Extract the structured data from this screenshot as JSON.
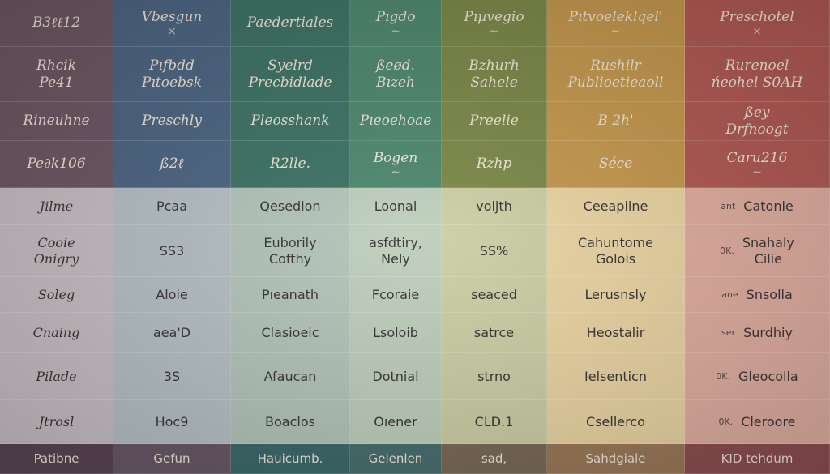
{
  "colors": {
    "columns": [
      {
        "dark": "#6e5865",
        "light": "#c9c1c6",
        "foot": "#5a4654"
      },
      {
        "dark": "#4e6784",
        "light": "#b7c2c7",
        "foot": "#6a5868"
      },
      {
        "dark": "#3f7467",
        "light": "#b5c6bb",
        "foot": "#3c6a6a"
      },
      {
        "dark": "#4f8a6f",
        "light": "#c0d0bd",
        "foot": "#496f6f"
      },
      {
        "dark": "#7d8a4a",
        "light": "#cdd0a6",
        "foot": "#7a6a55"
      },
      {
        "dark": "#c79a4f",
        "light": "#ecd6a4",
        "foot": "#9c7a58"
      },
      {
        "dark": "#b35a55",
        "light": "#e3b0a2",
        "foot": "#8f4f52"
      }
    ]
  },
  "rows": [
    {
      "kind": "dark",
      "cells": [
        {
          "lines": [
            "B3ℓℓ12"
          ]
        },
        {
          "lines": [
            "Vbesgun"
          ],
          "mark": "×"
        },
        {
          "lines": [
            "Paedertiales"
          ]
        },
        {
          "lines": [
            "Pıgdo"
          ],
          "mark": "~"
        },
        {
          "lines": [
            "Pıµvegio"
          ],
          "mark": "~"
        },
        {
          "lines": [
            "Pıtvoeleklqel'"
          ],
          "mark": "~"
        },
        {
          "lines": [
            "Preschotel"
          ],
          "mark": "×"
        }
      ]
    },
    {
      "kind": "dark",
      "cells": [
        {
          "lines": [
            "Rhcik",
            "Pe41"
          ]
        },
        {
          "lines": [
            "Pıfbdd",
            "Pıtoebsk"
          ]
        },
        {
          "lines": [
            "Syelrd",
            "Precbidlade"
          ]
        },
        {
          "lines": [
            "ßeød.",
            "Bızeh"
          ]
        },
        {
          "lines": [
            "Bzhurh",
            "Sahele"
          ]
        },
        {
          "lines": [
            "Rushilr",
            "Publioetieaoll"
          ]
        },
        {
          "lines": [
            "Rurenoel",
            "ńeohel S0AH"
          ]
        }
      ]
    },
    {
      "kind": "dark",
      "cells": [
        {
          "lines": [
            "Rineuhne"
          ]
        },
        {
          "lines": [
            "Preschly"
          ]
        },
        {
          "lines": [
            "Pleosshank"
          ]
        },
        {
          "lines": [
            "Pıeoehoae"
          ]
        },
        {
          "lines": [
            "Preelie"
          ]
        },
        {
          "lines": [
            "B 2h'"
          ]
        },
        {
          "lines": [
            "ßey",
            "Drfnoogt"
          ]
        }
      ]
    },
    {
      "kind": "dark",
      "cells": [
        {
          "lines": [
            "Pe∂k106"
          ]
        },
        {
          "lines": [
            "ß2ℓ"
          ]
        },
        {
          "lines": [
            "R2lle."
          ]
        },
        {
          "lines": [
            "Bogen"
          ],
          "mark": "~"
        },
        {
          "lines": [
            "Rzhp"
          ]
        },
        {
          "lines": [
            "Séce"
          ]
        },
        {
          "lines": [
            "Caru216"
          ],
          "mark": "~"
        }
      ]
    },
    {
      "kind": "light",
      "cells": [
        {
          "lines": [
            "Jilme"
          ]
        },
        {
          "lines": [
            "Pcaa"
          ]
        },
        {
          "lines": [
            "Qesedion"
          ]
        },
        {
          "lines": [
            "Loonal"
          ]
        },
        {
          "lines": [
            "voljth"
          ]
        },
        {
          "lines": [
            "Ceeapiine"
          ]
        },
        {
          "small": "ant",
          "lines": [
            "Catonie"
          ]
        }
      ]
    },
    {
      "kind": "light",
      "cells": [
        {
          "lines": [
            "Cooie",
            "Onigry"
          ]
        },
        {
          "lines": [
            "SS3"
          ]
        },
        {
          "lines": [
            "Euborily",
            "Cofthy"
          ]
        },
        {
          "lines": [
            "asfdtiry,",
            "Nely"
          ]
        },
        {
          "lines": [
            "SS%"
          ]
        },
        {
          "lines": [
            "Cahuntome",
            "Golois"
          ]
        },
        {
          "small": "0K.",
          "lines": [
            "Snahaly",
            "Cilie"
          ]
        }
      ]
    },
    {
      "kind": "light",
      "cells": [
        {
          "lines": [
            "Soleg"
          ]
        },
        {
          "lines": [
            "Aloie"
          ]
        },
        {
          "lines": [
            "Pıeanath"
          ]
        },
        {
          "lines": [
            "Fcoraie"
          ]
        },
        {
          "lines": [
            "seaced"
          ]
        },
        {
          "lines": [
            "Lerusnsly"
          ]
        },
        {
          "small": "ane",
          "lines": [
            "Snsolla"
          ]
        }
      ]
    },
    {
      "kind": "light",
      "cells": [
        {
          "lines": [
            "Cnaing"
          ]
        },
        {
          "lines": [
            "aea'D"
          ]
        },
        {
          "lines": [
            "Clasioeic"
          ]
        },
        {
          "lines": [
            "Lsoloib"
          ]
        },
        {
          "lines": [
            "satrce"
          ]
        },
        {
          "lines": [
            "Heostalir"
          ]
        },
        {
          "small": "ser",
          "lines": [
            "Surdhiy"
          ]
        }
      ]
    },
    {
      "kind": "light",
      "cells": [
        {
          "lines": [
            "Pilade"
          ]
        },
        {
          "lines": [
            "3S"
          ]
        },
        {
          "lines": [
            "Afaucan"
          ]
        },
        {
          "lines": [
            "Dotnial"
          ]
        },
        {
          "lines": [
            "strno"
          ]
        },
        {
          "lines": [
            "Ielsenticn"
          ]
        },
        {
          "small": "0K.",
          "lines": [
            "Gleocolla"
          ]
        }
      ]
    },
    {
      "kind": "light",
      "cells": [
        {
          "lines": [
            "Jtrosl"
          ]
        },
        {
          "lines": [
            "Hoc9"
          ]
        },
        {
          "lines": [
            "Boaclos"
          ]
        },
        {
          "lines": [
            "Oıener"
          ]
        },
        {
          "lines": [
            "CLD.1"
          ]
        },
        {
          "lines": [
            "Csellerco"
          ]
        },
        {
          "small": "0K.",
          "lines": [
            "Cleroore"
          ]
        }
      ]
    },
    {
      "kind": "foot",
      "cells": [
        {
          "lines": [
            "Patibne"
          ]
        },
        {
          "lines": [
            "Gefun"
          ]
        },
        {
          "lines": [
            "Hauicumb."
          ]
        },
        {
          "lines": [
            "Gelenlen"
          ]
        },
        {
          "lines": [
            "sad,"
          ]
        },
        {
          "lines": [
            "Sahdgiale"
          ]
        },
        {
          "lines": [
            "KID tehdum"
          ]
        }
      ]
    }
  ]
}
